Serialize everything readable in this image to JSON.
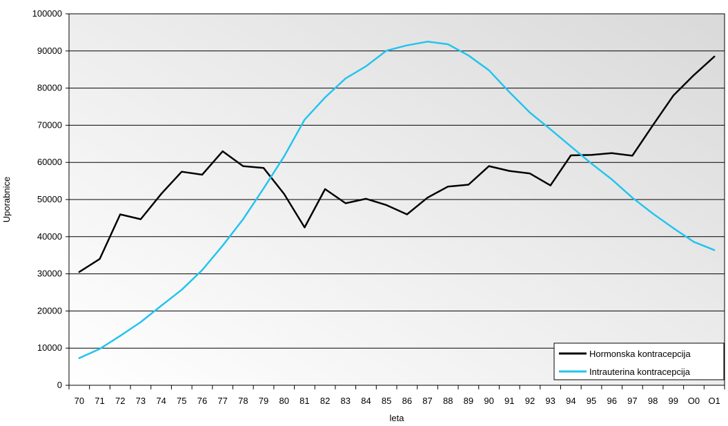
{
  "chart_data": {
    "type": "line",
    "title": "",
    "xlabel": "leta",
    "ylabel": "Uporabnice",
    "ylim": [
      0,
      100000
    ],
    "yticks": [
      0,
      10000,
      20000,
      30000,
      40000,
      50000,
      60000,
      70000,
      80000,
      90000,
      100000
    ],
    "grid": true,
    "legend_position": "bottom-right",
    "categories": [
      "70",
      "71",
      "72",
      "73",
      "74",
      "75",
      "76",
      "77",
      "78",
      "79",
      "80",
      "81",
      "82",
      "83",
      "84",
      "85",
      "86",
      "87",
      "88",
      "89",
      "90",
      "91",
      "92",
      "93",
      "94",
      "95",
      "96",
      "97",
      "98",
      "99",
      "O0",
      "O1"
    ],
    "series": [
      {
        "name": "Hormonska kontracepcija",
        "color": "#000000",
        "values": [
          30500,
          34000,
          46000,
          44700,
          51500,
          57500,
          56700,
          63000,
          59000,
          58500,
          51500,
          42500,
          52800,
          49000,
          50200,
          48500,
          46000,
          50500,
          53500,
          54000,
          59000,
          57700,
          57000,
          53800,
          61900,
          62000,
          62500,
          61800,
          70000,
          78000,
          83500,
          88500
        ]
      },
      {
        "name": "Intrauterina kontracepcija",
        "color": "#22c4ee",
        "values": [
          7300,
          9800,
          13300,
          17000,
          21400,
          25700,
          31000,
          37600,
          44700,
          53000,
          61600,
          71500,
          77500,
          82600,
          85900,
          90100,
          91500,
          92500,
          91800,
          88800,
          84800,
          78900,
          73400,
          68900,
          64300,
          59700,
          55400,
          50500,
          46200,
          42300,
          38600,
          36400
        ]
      }
    ]
  }
}
